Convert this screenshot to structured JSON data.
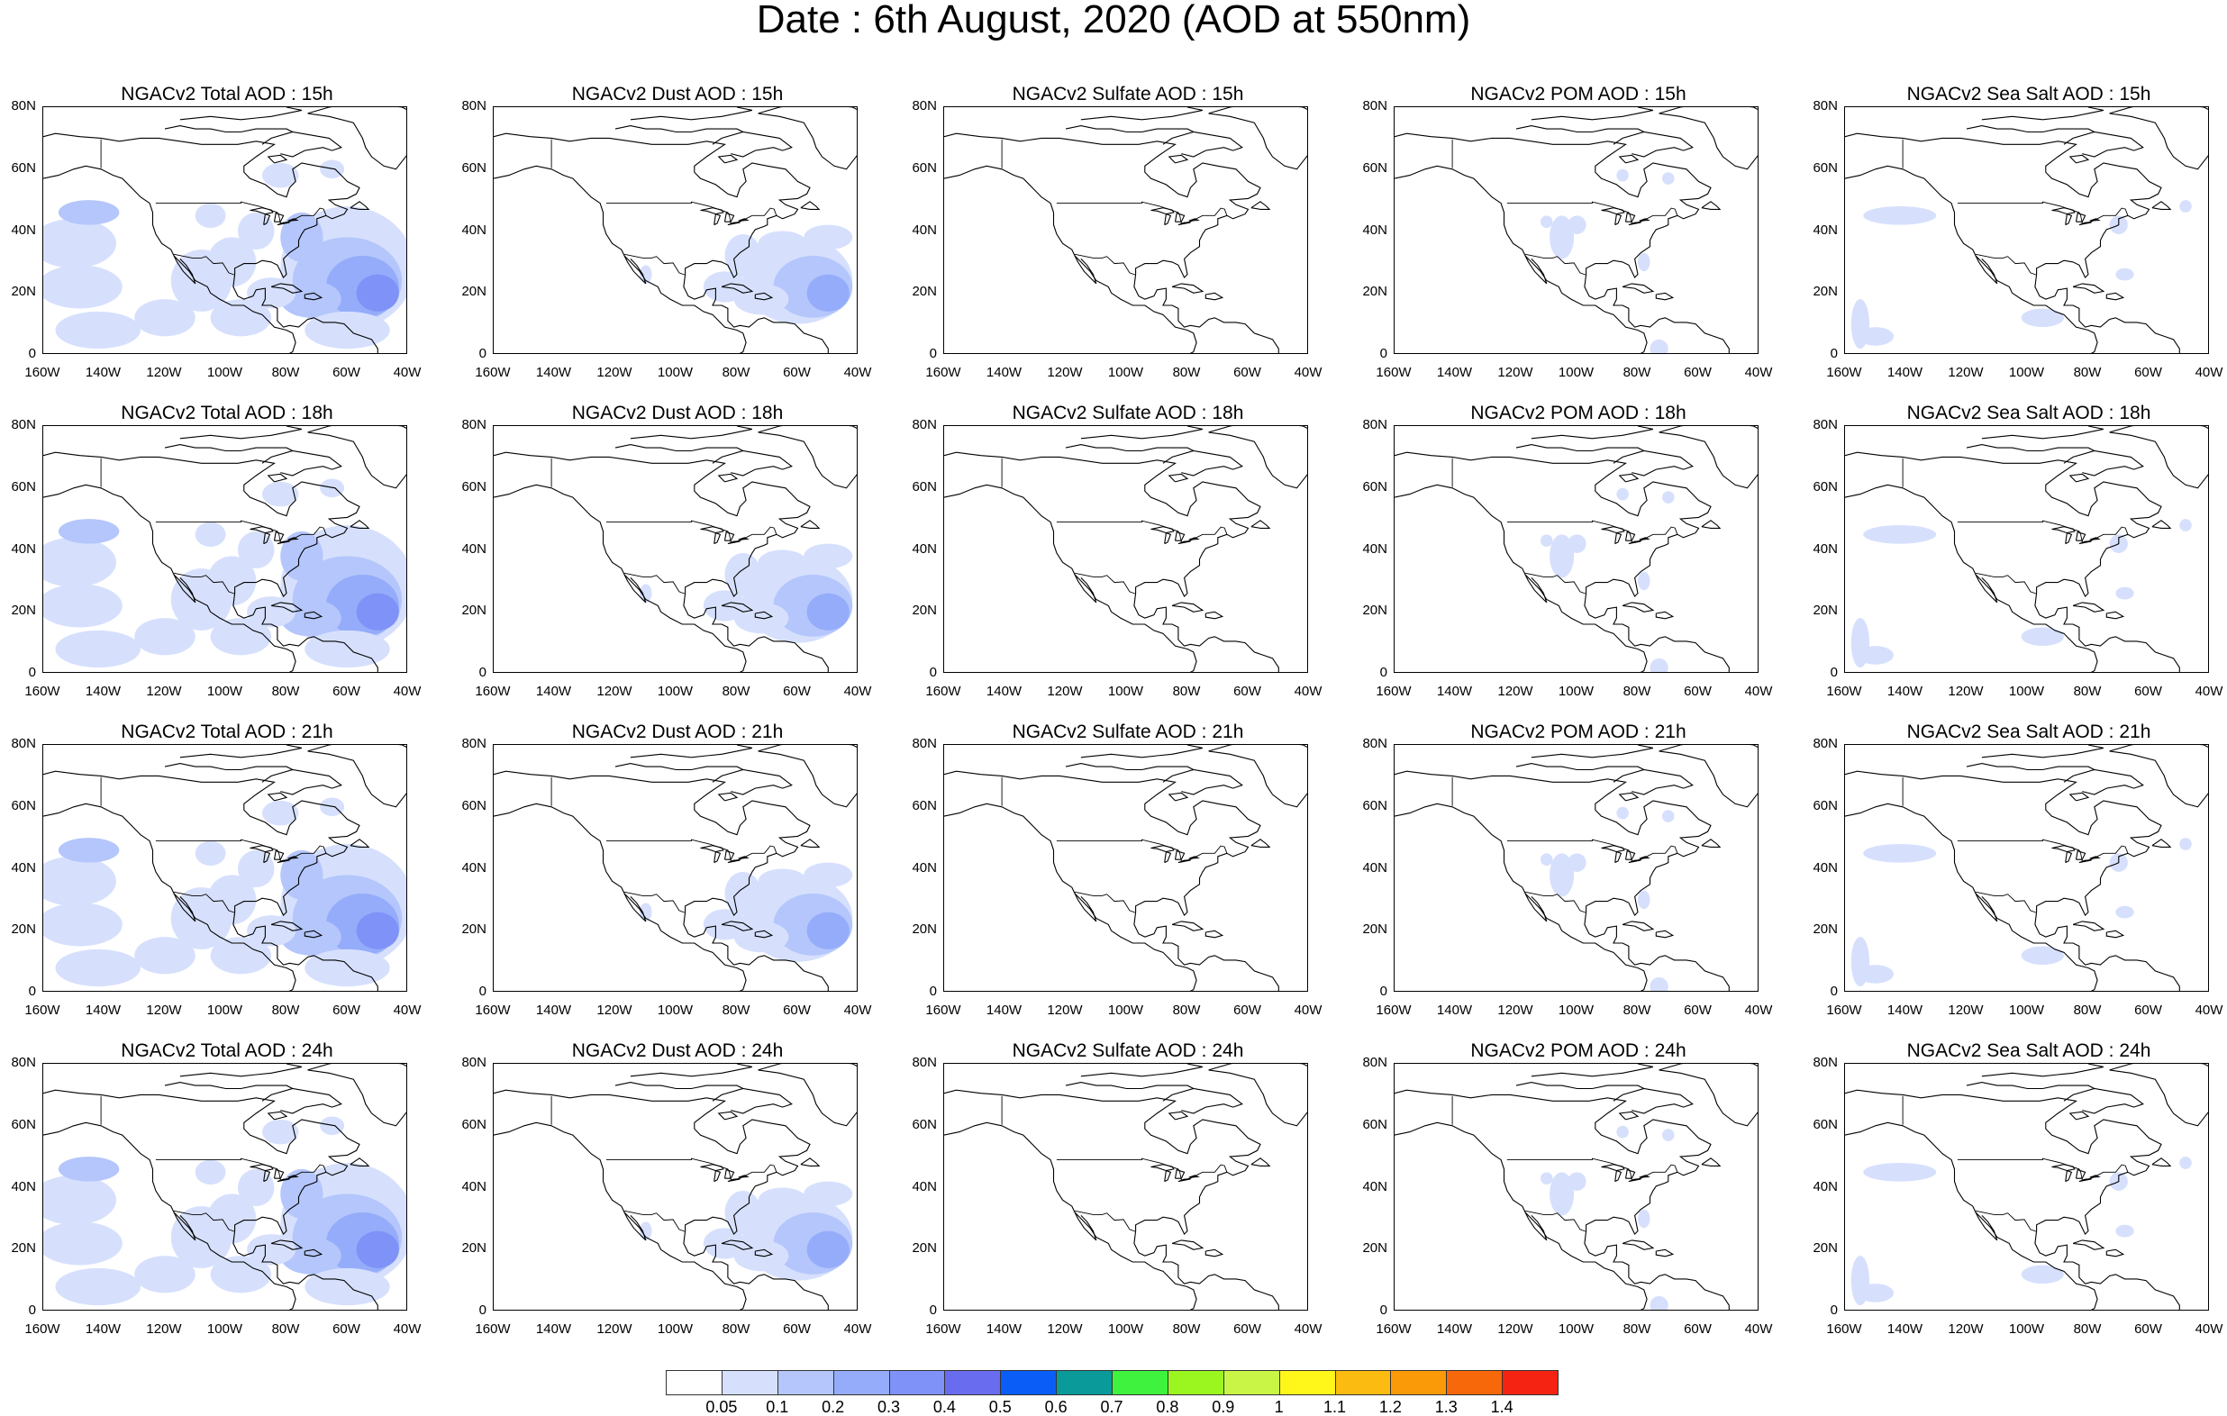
{
  "title": "Date : 6th August, 2020 (AOD at 550nm)",
  "x_tick_labels": [
    "160W",
    "140W",
    "120W",
    "100W",
    "80W",
    "60W",
    "40W"
  ],
  "y_tick_labels": [
    "80N",
    "60N",
    "40N",
    "20N",
    "0"
  ],
  "map_extent": {
    "lon": [
      -160,
      -40
    ],
    "lat": [
      0,
      80
    ]
  },
  "panels": [
    {
      "title": "NGACv2 Total AOD : 15h",
      "species": "total",
      "hour": "15h"
    },
    {
      "title": "NGACv2 Dust AOD : 15h",
      "species": "dust",
      "hour": "15h"
    },
    {
      "title": "NGACv2 Sulfate AOD : 15h",
      "species": "sulfate",
      "hour": "15h"
    },
    {
      "title": "NGACv2 POM AOD : 15h",
      "species": "pom",
      "hour": "15h"
    },
    {
      "title": "NGACv2 Sea Salt AOD : 15h",
      "species": "seasalt",
      "hour": "15h"
    },
    {
      "title": "NGACv2 Total AOD : 18h",
      "species": "total",
      "hour": "18h"
    },
    {
      "title": "NGACv2 Dust AOD : 18h",
      "species": "dust",
      "hour": "18h"
    },
    {
      "title": "NGACv2 Sulfate AOD : 18h",
      "species": "sulfate",
      "hour": "18h"
    },
    {
      "title": "NGACv2 POM AOD : 18h",
      "species": "pom",
      "hour": "18h"
    },
    {
      "title": "NGACv2 Sea Salt AOD : 18h",
      "species": "seasalt",
      "hour": "18h"
    },
    {
      "title": "NGACv2 Total AOD : 21h",
      "species": "total",
      "hour": "21h"
    },
    {
      "title": "NGACv2 Dust AOD : 21h",
      "species": "dust",
      "hour": "21h"
    },
    {
      "title": "NGACv2 Sulfate AOD : 21h",
      "species": "sulfate",
      "hour": "21h"
    },
    {
      "title": "NGACv2 POM AOD : 21h",
      "species": "pom",
      "hour": "21h"
    },
    {
      "title": "NGACv2 Sea Salt AOD : 21h",
      "species": "seasalt",
      "hour": "21h"
    },
    {
      "title": "NGACv2 Total AOD : 24h",
      "species": "total",
      "hour": "24h"
    },
    {
      "title": "NGACv2 Dust AOD : 24h",
      "species": "dust",
      "hour": "24h"
    },
    {
      "title": "NGACv2 Sulfate AOD : 24h",
      "species": "sulfate",
      "hour": "24h"
    },
    {
      "title": "NGACv2 POM AOD : 24h",
      "species": "pom",
      "hour": "24h"
    },
    {
      "title": "NGACv2 Sea Salt  AOD : 24h",
      "species": "seasalt",
      "hour": "24h"
    }
  ],
  "colorbar": {
    "labels": [
      "0.05",
      "0.1",
      "0.2",
      "0.3",
      "0.4",
      "0.5",
      "0.6",
      "0.7",
      "0.8",
      "0.9",
      "1",
      "1.1",
      "1.2",
      "1.3",
      "1.4"
    ],
    "colors": [
      "#ffffff",
      "#d6e0fd",
      "#b4c6fb",
      "#95acfa",
      "#7f92f7",
      "#6a6cf0",
      "#0a5ef7",
      "#0a9a9a",
      "#3ef23e",
      "#9bf51f",
      "#c8f546",
      "#fff71a",
      "#fcbb10",
      "#fb9a08",
      "#f7680a",
      "#f52412"
    ]
  },
  "shading": {
    "light": "#d6e0fd",
    "mid": "#b4c6fb",
    "strong": "#95acfa",
    "core": "#7f92f7"
  }
}
